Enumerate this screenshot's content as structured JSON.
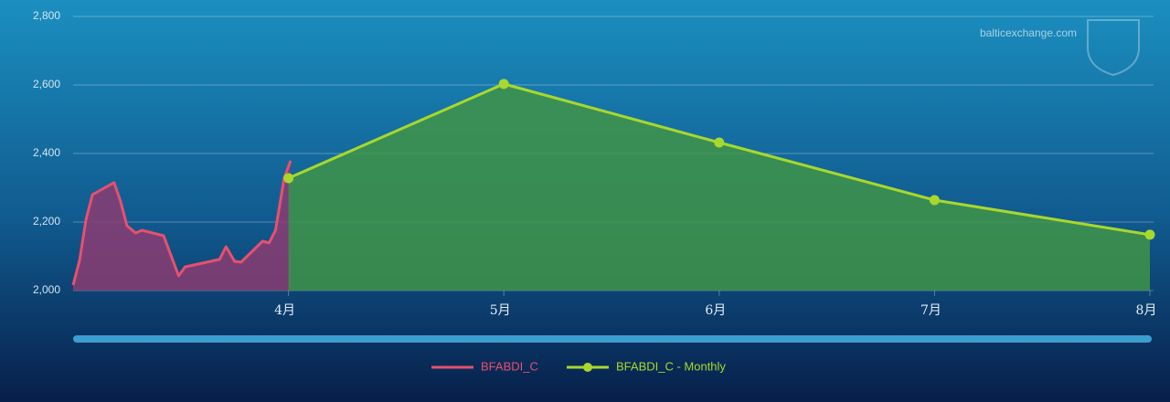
{
  "chart_data": {
    "type": "area-line",
    "watermark": "balticexchange.com",
    "xlim": [
      3,
      8
    ],
    "xticks": [
      {
        "value": 4,
        "label": "4月"
      },
      {
        "value": 5,
        "label": "5月"
      },
      {
        "value": 6,
        "label": "6月"
      },
      {
        "value": 7,
        "label": "7月"
      },
      {
        "value": 8,
        "label": "8月"
      }
    ],
    "ylim": [
      2000,
      2800
    ],
    "yticks": [
      {
        "value": 2000,
        "label": "2,000"
      },
      {
        "value": 2200,
        "label": "2,200"
      },
      {
        "value": 2400,
        "label": "2,400"
      },
      {
        "value": 2600,
        "label": "2,600"
      },
      {
        "value": 2800,
        "label": "2,800"
      }
    ],
    "grid": true,
    "series": [
      {
        "name": "BFABDI_C",
        "color": "#e8506e",
        "area_color": "#8a3c72",
        "markers": false,
        "x": [
          3.0,
          3.03,
          3.06,
          3.09,
          3.19,
          3.22,
          3.25,
          3.29,
          3.32,
          3.42,
          3.49,
          3.52,
          3.68,
          3.71,
          3.75,
          3.78,
          3.88,
          3.91,
          3.94,
          3.98,
          4.01
        ],
        "values": [
          2016,
          2088,
          2208,
          2280,
          2315,
          2261,
          2189,
          2168,
          2176,
          2160,
          2043,
          2069,
          2091,
          2128,
          2085,
          2083,
          2144,
          2139,
          2176,
          2328,
          2379
        ]
      },
      {
        "name": "BFABDI_C - Monthly",
        "color": "#a8d82c",
        "area_color": "#3f9448",
        "markers": true,
        "x": [
          4,
          5,
          6,
          7,
          8
        ],
        "values": [
          2328,
          2603,
          2432,
          2264,
          2163
        ]
      }
    ]
  }
}
